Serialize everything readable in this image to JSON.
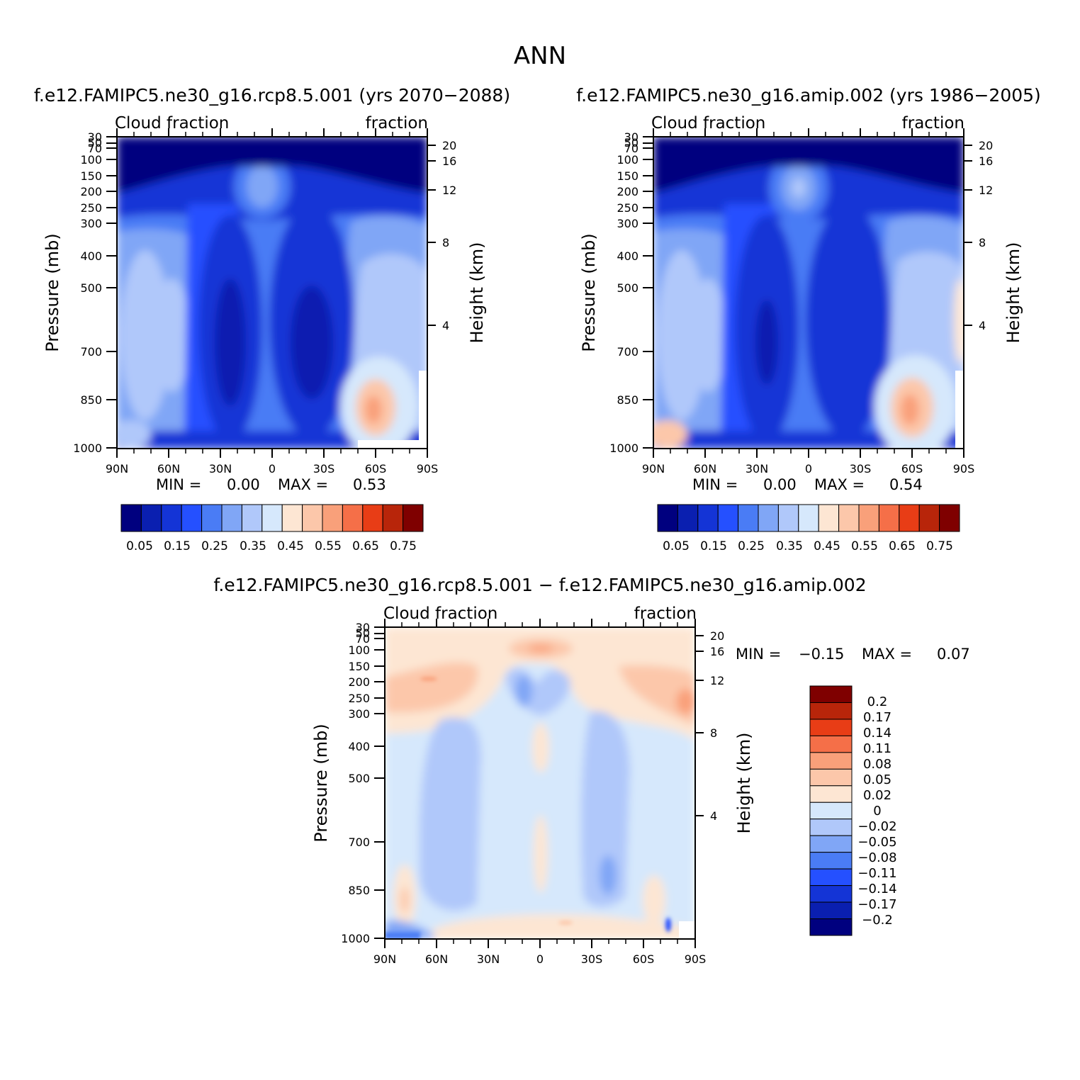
{
  "figure_title": "ANN",
  "chart_data": [
    {
      "type": "heatmap",
      "title": "f.e12.FAMIPC5.ne30_g16.rcp8.5.001 (yrs 2070−2088)",
      "left_label": "Cloud fraction",
      "right_label": "fraction",
      "ylabel": "Pressure (mb)",
      "y2label": "Height (km)",
      "x_ticks": [
        "90N",
        "60N",
        "30N",
        "0",
        "30S",
        "60S",
        "90S"
      ],
      "y_ticks": [
        "30",
        "50",
        "70",
        "100",
        "150",
        "200",
        "250",
        "300",
        "400",
        "500",
        "700",
        "850",
        "1000"
      ],
      "y2_ticks": [
        "20",
        "16",
        "12",
        "8",
        "4"
      ],
      "min_label": "MIN =",
      "min_value": "0.00",
      "max_label": "MAX =",
      "max_value": "0.53",
      "colorbar_labels": [
        "0.05",
        "0.15",
        "0.25",
        "0.35",
        "0.45",
        "0.55",
        "0.65",
        "0.75"
      ]
    },
    {
      "type": "heatmap",
      "title": "f.e12.FAMIPC5.ne30_g16.amip.002 (yrs 1986−2005)",
      "left_label": "Cloud fraction",
      "right_label": "fraction",
      "ylabel": "Pressure (mb)",
      "y2label": "Height (km)",
      "x_ticks": [
        "90N",
        "60N",
        "30N",
        "0",
        "30S",
        "60S",
        "90S"
      ],
      "y_ticks": [
        "30",
        "50",
        "70",
        "100",
        "150",
        "200",
        "250",
        "300",
        "400",
        "500",
        "700",
        "850",
        "1000"
      ],
      "y2_ticks": [
        "20",
        "16",
        "12",
        "8",
        "4"
      ],
      "min_label": "MIN =",
      "min_value": "0.00",
      "max_label": "MAX =",
      "max_value": "0.54",
      "colorbar_labels": [
        "0.05",
        "0.15",
        "0.25",
        "0.35",
        "0.45",
        "0.55",
        "0.65",
        "0.75"
      ]
    },
    {
      "type": "heatmap",
      "title": "f.e12.FAMIPC5.ne30_g16.rcp8.5.001 − f.e12.FAMIPC5.ne30_g16.amip.002",
      "left_label": "Cloud fraction",
      "right_label": "fraction",
      "ylabel": "Pressure (mb)",
      "y2label": "Height (km)",
      "x_ticks": [
        "90N",
        "60N",
        "30N",
        "0",
        "30S",
        "60S",
        "90S"
      ],
      "y_ticks": [
        "30",
        "50",
        "70",
        "100",
        "150",
        "200",
        "250",
        "300",
        "400",
        "500",
        "700",
        "850",
        "1000"
      ],
      "y2_ticks": [
        "20",
        "16",
        "12",
        "8",
        "4"
      ],
      "min_label": "MIN =",
      "min_value": "−0.15",
      "max_label": "MAX =",
      "max_value": "0.07",
      "colorbar_labels": [
        "0.2",
        "0.17",
        "0.14",
        "0.11",
        "0.08",
        "0.05",
        "0.02",
        "0",
        "−0.02",
        "−0.05",
        "−0.08",
        "−0.11",
        "−0.14",
        "−0.17",
        "−0.2"
      ]
    }
  ],
  "palette": [
    "#00007f",
    "#0a1fb0",
    "#1434d6",
    "#2550ff",
    "#4a7cf5",
    "#80a6f6",
    "#b0c8fa",
    "#d6e8fc",
    "#fde6d3",
    "#fcc7aa",
    "#f9a07a",
    "#f56f48",
    "#e83d16",
    "#b8250a",
    "#7f0000"
  ],
  "diff_palette": [
    "#7f0000",
    "#b8250a",
    "#e83d16",
    "#f56f48",
    "#f9a07a",
    "#fcc7aa",
    "#fde6d3",
    "#d6e8fc",
    "#b0c8fa",
    "#80a6f6",
    "#4a7cf5",
    "#2550ff",
    "#1434d6",
    "#0a1fb0",
    "#00007f"
  ]
}
